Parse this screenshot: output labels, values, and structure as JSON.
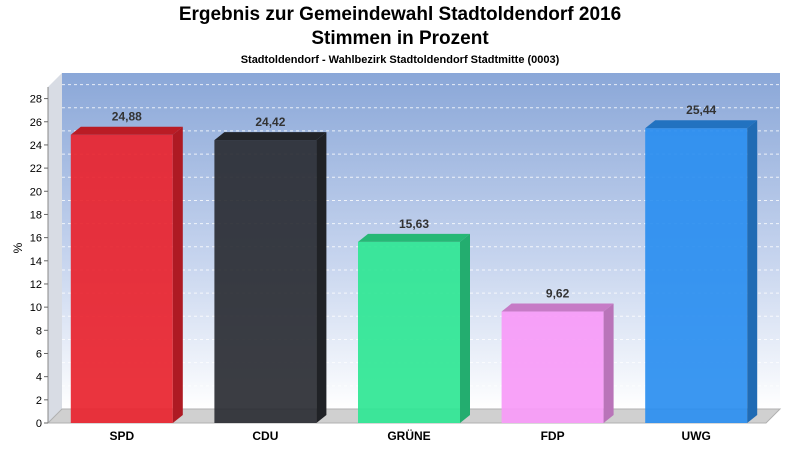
{
  "chart_data": {
    "type": "bar",
    "title": "Ergebnis zur Gemeindewahl Stadtoldendorf 2016",
    "title2": "Stimmen in Prozent",
    "subtitle": "Stadtoldendorf - Wahlbezirk Stadtoldendorf Stadtmitte (0003)",
    "ylabel": "%",
    "xlabel": "",
    "ylim": [
      0,
      29
    ],
    "yticks": [
      0,
      2,
      4,
      6,
      8,
      10,
      12,
      14,
      16,
      18,
      20,
      22,
      24,
      26,
      28
    ],
    "grid": true,
    "categories": [
      "SPD",
      "CDU",
      "GRÜNE",
      "FDP",
      "UWG"
    ],
    "values": [
      24.88,
      24.42,
      15.63,
      9.62,
      25.44
    ],
    "value_labels": [
      "24,88",
      "24,42",
      "15,63",
      "9,62",
      "25,44"
    ],
    "colors": [
      "#e8232e",
      "#2a2d33",
      "#2fe694",
      "#f79af7",
      "#2a8ef0"
    ]
  }
}
